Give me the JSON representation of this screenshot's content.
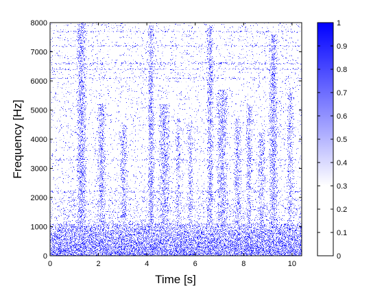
{
  "chart_data": [
    {
      "type": "heatmap",
      "title": "",
      "xlabel": "Time [s]",
      "ylabel": "Frequency [Hz]",
      "xlim": [
        0,
        10.4
      ],
      "ylim": [
        0,
        8000
      ],
      "x_ticks": [
        0,
        2,
        4,
        6,
        8,
        10
      ],
      "x_tick_labels": [
        "0",
        "2",
        "4",
        "6",
        "8",
        "10"
      ],
      "y_ticks": [
        0,
        1000,
        2000,
        3000,
        4000,
        5000,
        6000,
        7000,
        8000
      ],
      "y_tick_labels": [
        "0",
        "1000",
        "2000",
        "3000",
        "4000",
        "5000",
        "6000",
        "7000",
        "8000"
      ],
      "grid": false,
      "low_freq_energy_band_hz": [
        0,
        1100
      ],
      "events": [
        {
          "t_start": 1.1,
          "t_end": 1.5,
          "f_max": 8000,
          "intensity": 0.95
        },
        {
          "t_start": 1.95,
          "t_end": 2.3,
          "f_max": 5200,
          "intensity": 0.8
        },
        {
          "t_start": 2.9,
          "t_end": 3.2,
          "f_max": 4500,
          "intensity": 0.7
        },
        {
          "t_start": 4.05,
          "t_end": 4.3,
          "f_max": 7900,
          "intensity": 0.95
        },
        {
          "t_start": 4.5,
          "t_end": 4.95,
          "f_max": 5200,
          "intensity": 0.8
        },
        {
          "t_start": 5.2,
          "t_end": 5.4,
          "f_max": 4700,
          "intensity": 0.6
        },
        {
          "t_start": 5.7,
          "t_end": 5.9,
          "f_max": 4600,
          "intensity": 0.6
        },
        {
          "t_start": 6.5,
          "t_end": 6.75,
          "f_max": 7900,
          "intensity": 0.9
        },
        {
          "t_start": 6.9,
          "t_end": 7.35,
          "f_max": 5700,
          "intensity": 0.8
        },
        {
          "t_start": 7.6,
          "t_end": 7.9,
          "f_max": 4700,
          "intensity": 0.7
        },
        {
          "t_start": 8.1,
          "t_end": 8.35,
          "f_max": 5200,
          "intensity": 0.7
        },
        {
          "t_start": 8.6,
          "t_end": 8.9,
          "f_max": 4200,
          "intensity": 0.7
        },
        {
          "t_start": 9.05,
          "t_end": 9.4,
          "f_max": 7600,
          "intensity": 0.9
        },
        {
          "t_start": 9.8,
          "t_end": 10.05,
          "f_max": 5600,
          "intensity": 0.6
        }
      ],
      "horizontal_bands_hz": [
        2200,
        3300,
        6100,
        6400,
        6600,
        7200,
        7700
      ],
      "colorbar": {
        "min": 0,
        "max": 1,
        "ticks": [
          0,
          0.1,
          0.2,
          0.3,
          0.4,
          0.5,
          0.6,
          0.7,
          0.8,
          0.9,
          1
        ],
        "tick_labels": [
          "0",
          "0.1",
          "0.2",
          "0.3",
          "0.4",
          "0.5",
          "0.6",
          "0.7",
          "0.8",
          "0.9",
          "1"
        ],
        "colors": [
          "#ffffff",
          "#0000ff"
        ]
      }
    }
  ]
}
